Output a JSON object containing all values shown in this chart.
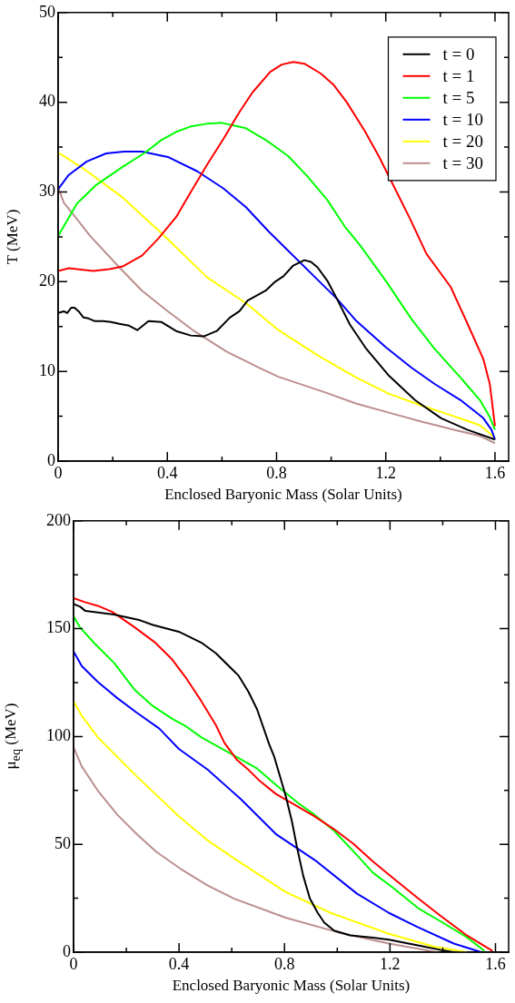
{
  "chart_data": [
    {
      "type": "line",
      "xlabel": "Enclosed Baryonic Mass (Solar Units)",
      "ylabel": "T (MeV)",
      "xlim": [
        0,
        1.65
      ],
      "xticks": [
        0,
        {
          "value": 0.2,
          "label": null
        },
        0.4,
        {
          "value": 0.6,
          "label": null
        },
        0.8,
        {
          "value": 1.0,
          "label": null
        },
        1.2,
        {
          "value": 1.4,
          "label": null
        },
        1.6
      ],
      "ylim": [
        0,
        50
      ],
      "yticks": [
        0,
        {
          "value": 5,
          "label": null
        },
        10,
        {
          "value": 15,
          "label": null
        },
        20,
        {
          "value": 25,
          "label": null
        },
        30,
        {
          "value": 35,
          "label": null
        },
        40,
        {
          "value": 45,
          "label": null
        },
        50
      ],
      "legend": "top right",
      "line_style": "solid",
      "marker": "none",
      "series": [
        {
          "name": "t = 0",
          "color": "#000000",
          "x": [
            0,
            0.021,
            0.033,
            0.048,
            0.06,
            0.075,
            0.093,
            0.111,
            0.135,
            0.164,
            0.194,
            0.224,
            0.26,
            0.29,
            0.331,
            0.379,
            0.432,
            0.486,
            0.533,
            0.581,
            0.629,
            0.664,
            0.694,
            0.724,
            0.76,
            0.795,
            0.825,
            0.861,
            0.902,
            0.926,
            0.95,
            0.986,
            1.021,
            1.069,
            1.129,
            1.212,
            1.307,
            1.402,
            1.498,
            1.6
          ],
          "values": [
            16.5,
            16.7,
            16.5,
            17.1,
            17.1,
            16.7,
            16.0,
            15.9,
            15.6,
            15.6,
            15.5,
            15.3,
            15.1,
            14.6,
            15.6,
            15.5,
            14.5,
            14.0,
            13.9,
            14.5,
            16.0,
            16.7,
            17.9,
            18.4,
            19.0,
            20.0,
            20.6,
            21.8,
            22.4,
            22.2,
            21.6,
            20.1,
            18.1,
            15.2,
            12.5,
            9.5,
            6.8,
            4.8,
            3.5,
            2.4
          ]
        },
        {
          "name": "t = 1",
          "color": "#ff0000",
          "x": [
            0,
            0.039,
            0.129,
            0.188,
            0.236,
            0.307,
            0.367,
            0.432,
            0.486,
            0.545,
            0.605,
            0.664,
            0.712,
            0.777,
            0.819,
            0.861,
            0.902,
            0.962,
            1.01,
            1.057,
            1.123,
            1.176,
            1.23,
            1.289,
            1.349,
            1.438,
            1.498,
            1.557,
            1.581,
            1.6
          ],
          "values": [
            21.2,
            21.5,
            21.2,
            21.4,
            21.7,
            22.9,
            24.8,
            27.2,
            30.0,
            33.0,
            35.9,
            38.9,
            41.1,
            43.4,
            44.2,
            44.5,
            44.3,
            43.2,
            41.9,
            40.0,
            36.8,
            33.9,
            30.6,
            27.0,
            23.1,
            19.4,
            15.4,
            11.4,
            8.6,
            3.9
          ]
        },
        {
          "name": "t = 5",
          "color": "#00ff00",
          "x": [
            0,
            0.069,
            0.14,
            0.236,
            0.319,
            0.379,
            0.432,
            0.486,
            0.545,
            0.599,
            0.688,
            0.765,
            0.843,
            0.914,
            0.986,
            1.051,
            1.105,
            1.2,
            1.295,
            1.379,
            1.474,
            1.545,
            1.581,
            1.6
          ],
          "values": [
            25.1,
            28.7,
            30.8,
            32.8,
            34.4,
            35.8,
            36.7,
            37.3,
            37.6,
            37.7,
            37.1,
            35.7,
            34.0,
            31.7,
            29.1,
            26.1,
            24.1,
            20.1,
            15.8,
            12.5,
            9.3,
            6.8,
            4.9,
            3.5
          ]
        },
        {
          "name": "t = 10",
          "color": "#0000ff",
          "x": [
            0,
            0.039,
            0.105,
            0.176,
            0.242,
            0.307,
            0.402,
            0.51,
            0.605,
            0.688,
            0.771,
            1.021,
            1.093,
            1.2,
            1.295,
            1.379,
            1.474,
            1.557,
            1.587,
            1.6
          ],
          "values": [
            30.3,
            31.9,
            33.4,
            34.3,
            34.5,
            34.5,
            33.9,
            32.3,
            30.4,
            28.3,
            25.6,
            18.1,
            15.6,
            12.7,
            10.4,
            8.6,
            6.8,
            4.8,
            3.5,
            2.4
          ]
        },
        {
          "name": "t = 20",
          "color": "#ffff00",
          "x": [
            0,
            0.093,
            0.164,
            0.236,
            0.307,
            0.379,
            0.545,
            0.688,
            0.807,
            0.95,
            1.093,
            1.212,
            1.331,
            1.45,
            1.545,
            1.6
          ],
          "values": [
            34.4,
            32.6,
            31.0,
            29.4,
            27.4,
            25.4,
            20.5,
            17.6,
            14.6,
            11.8,
            9.3,
            7.5,
            6.2,
            5.0,
            4.0,
            2.6
          ]
        },
        {
          "name": "t = 30",
          "color": "#bc8f8f",
          "x": [
            0,
            0.021,
            0.063,
            0.117,
            0.224,
            0.307,
            0.402,
            0.498,
            0.617,
            0.736,
            0.807,
            0.974,
            1.093,
            1.212,
            1.331,
            1.45,
            1.545,
            1.6
          ],
          "values": [
            30.5,
            28.8,
            27.2,
            25.1,
            21.6,
            19.0,
            16.7,
            14.5,
            12.2,
            10.4,
            9.4,
            7.7,
            6.4,
            5.4,
            4.4,
            3.5,
            2.8,
            2.0
          ]
        }
      ]
    },
    {
      "type": "line",
      "xlabel": "Enclosed Baryonic Mass (Solar Units)",
      "ylabel": "μ$_{eq}$ (MeV)",
      "xlim": [
        0,
        1.65
      ],
      "xticks": [
        0,
        {
          "value": 0.2,
          "label": null
        },
        0.4,
        {
          "value": 0.6,
          "label": null
        },
        0.8,
        {
          "value": 1.0,
          "label": null
        },
        1.2,
        {
          "value": 1.4,
          "label": null
        },
        1.6
      ],
      "ylim": [
        0,
        200
      ],
      "yticks": [
        0,
        {
          "value": 25,
          "label": null
        },
        50,
        {
          "value": 75,
          "label": null
        },
        100,
        {
          "value": 125,
          "label": null
        },
        150,
        {
          "value": 175,
          "label": null
        },
        200
      ],
      "line_style": "solid",
      "marker": "none",
      "series": [
        {
          "color": "#000000",
          "x": [
            0,
            0.025,
            0.045,
            0.092,
            0.153,
            0.252,
            0.301,
            0.399,
            0.429,
            0.485,
            0.54,
            0.626,
            0.663,
            0.696,
            0.742,
            0.761,
            0.804,
            0.828,
            0.847,
            0.871,
            0.896,
            0.926,
            0.951,
            0.988,
            1.049,
            1.135,
            1.196,
            1.319,
            1.393,
            1.442
          ],
          "values": [
            161.4,
            160.2,
            158.2,
            157.5,
            156.6,
            153.9,
            151.7,
            148.6,
            146.8,
            143.5,
            138.6,
            128.2,
            120.8,
            112.6,
            96.3,
            90.6,
            72.7,
            60.7,
            48.8,
            35.4,
            24.9,
            18.2,
            13.7,
            10.0,
            7.8,
            6.7,
            5.8,
            2.8,
            1.0,
            0
          ]
        },
        {
          "color": "#ff0000",
          "x": [
            0,
            0.043,
            0.092,
            0.147,
            0.233,
            0.307,
            0.374,
            0.429,
            0.485,
            0.54,
            0.571,
            0.62,
            0.663,
            0.706,
            0.767,
            0.84,
            0.914,
            0.988,
            1.061,
            1.135,
            1.209,
            1.307,
            1.393,
            1.491,
            1.589
          ],
          "values": [
            164.2,
            162.3,
            160.6,
            157.8,
            150.5,
            143.8,
            135.7,
            126.7,
            116.3,
            105.2,
            97.3,
            89.1,
            84.6,
            79.4,
            73.4,
            68.2,
            63.0,
            57.0,
            50.3,
            42.1,
            34.6,
            24.9,
            16.7,
            7.8,
            0.6
          ]
        },
        {
          "color": "#00ff00",
          "x": [
            0,
            0.025,
            0.08,
            0.153,
            0.233,
            0.301,
            0.374,
            0.429,
            0.485,
            0.607,
            0.693,
            0.779,
            0.853,
            0.914,
            0.988,
            1.074,
            1.135,
            1.209,
            1.307,
            1.393,
            1.491,
            1.558
          ],
          "values": [
            155.7,
            150.5,
            143.1,
            134.2,
            121.5,
            114.1,
            108.2,
            104.5,
            99.6,
            91.3,
            85.4,
            76.4,
            69.0,
            63.7,
            56.3,
            45.1,
            36.9,
            30.1,
            20.4,
            14.2,
            7.0,
            0.6
          ]
        },
        {
          "color": "#0000ff",
          "x": [
            0,
            0.031,
            0.092,
            0.166,
            0.239,
            0.325,
            0.399,
            0.509,
            0.632,
            0.767,
            0.914,
            1.074,
            1.196,
            1.307,
            1.442,
            1.546
          ],
          "values": [
            139.4,
            132.7,
            125.3,
            117.8,
            111.1,
            103.7,
            94.3,
            84.6,
            71.2,
            54.8,
            42.8,
            27.2,
            18.2,
            11.5,
            4.0,
            0
          ]
        },
        {
          "color": "#ffff00",
          "x": [
            0,
            0.031,
            0.092,
            0.239,
            0.399,
            0.509,
            0.607,
            0.804,
            0.975,
            1.196,
            1.368,
            1.491
          ],
          "values": [
            116.3,
            109.7,
            99.6,
            81.6,
            63.0,
            51.8,
            43.6,
            27.9,
            18.2,
            8.5,
            2.5,
            0
          ]
        },
        {
          "color": "#bc8f8f",
          "x": [
            0,
            0.031,
            0.092,
            0.166,
            0.239,
            0.313,
            0.405,
            0.509,
            0.607,
            0.804,
            1.0,
            1.196,
            1.38
          ],
          "values": [
            95.1,
            86.1,
            74.9,
            63.7,
            54.8,
            46.6,
            38.7,
            30.9,
            24.9,
            16.0,
            9.3,
            4.0,
            0
          ]
        }
      ]
    }
  ]
}
